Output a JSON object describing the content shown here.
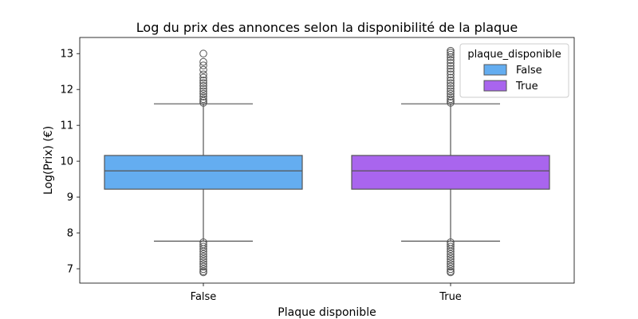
{
  "chart_data": {
    "type": "boxplot",
    "title": "Log du prix des annonces selon la disponibilité de la plaque",
    "xlabel": "Plaque disponible",
    "ylabel": "Log(Prix) (€)",
    "categories": [
      "False",
      "True"
    ],
    "ylim": [
      6.6,
      13.45
    ],
    "yticks": [
      7,
      8,
      9,
      10,
      11,
      12,
      13
    ],
    "grid": false,
    "legend": {
      "title": "plaque_disponible",
      "placement": "top-right",
      "entries": [
        {
          "label": "False",
          "color": "#64adf0"
        },
        {
          "label": "True",
          "color": "#a965ee"
        }
      ]
    },
    "series": [
      {
        "category": "False",
        "color": "#64adf0",
        "whisker_low": 7.77,
        "q1": 9.22,
        "median": 9.73,
        "q3": 10.16,
        "whisker_high": 11.6,
        "outliers_high": [
          11.63,
          11.68,
          11.73,
          11.8,
          11.88,
          11.95,
          12.02,
          12.1,
          12.18,
          12.25,
          12.33,
          12.42,
          12.55,
          12.67,
          12.77,
          13.0
        ],
        "outliers_low": [
          7.74,
          7.68,
          7.62,
          7.55,
          7.48,
          7.41,
          7.34,
          7.27,
          7.2,
          7.13,
          7.06,
          6.99,
          6.93,
          6.9
        ]
      },
      {
        "category": "True",
        "color": "#a965ee",
        "whisker_low": 7.77,
        "q1": 9.22,
        "median": 9.73,
        "q3": 10.16,
        "whisker_high": 11.6,
        "outliers_high": [
          11.63,
          11.68,
          11.73,
          11.8,
          11.88,
          11.95,
          12.02,
          12.1,
          12.18,
          12.25,
          12.33,
          12.42,
          12.5,
          12.58,
          12.66,
          12.74,
          12.82,
          12.9,
          12.97,
          13.03,
          13.08
        ],
        "outliers_low": [
          7.74,
          7.68,
          7.62,
          7.55,
          7.48,
          7.41,
          7.34,
          7.27,
          7.2,
          7.13,
          7.06,
          6.99,
          6.93,
          6.9
        ]
      }
    ]
  }
}
